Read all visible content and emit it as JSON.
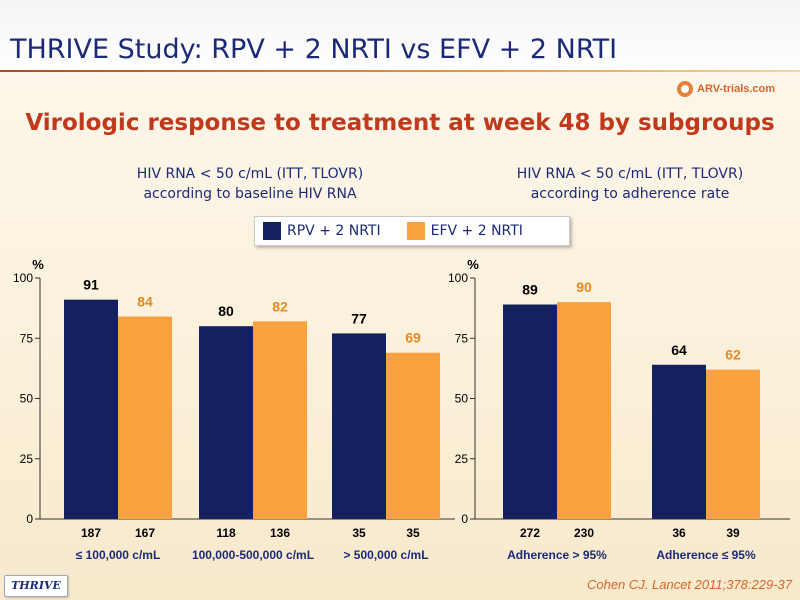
{
  "slide": {
    "title": "THRIVE Study: RPV + 2 NRTI vs EFV + 2 NRTI",
    "logo_text": "ARV-trials.com",
    "subtitle": "Virologic response to treatment at week 48 by subgroups",
    "citation": "Cohen CJ. Lancet 2011;378:229-37",
    "footer_logo": "THRIVE",
    "colors": {
      "rpv": "#13215e",
      "efv": "#f8a13f",
      "title": "#1b2a78",
      "subtitle": "#c0391b",
      "citation": "#d9642a"
    }
  },
  "panels": [
    {
      "title_line1": "HIV RNA < 50 c/mL (ITT, TLOVR)",
      "title_line2": "according to baseline HIV RNA"
    },
    {
      "title_line1": "HIV RNA < 50 c/mL (ITT, TLOVR)",
      "title_line2": "according to adherence rate"
    }
  ],
  "legend": {
    "items": [
      {
        "label": "RPV + 2 NRTI",
        "color": "#13215e"
      },
      {
        "label": "EFV + 2 NRTI",
        "color": "#f8a13f"
      }
    ]
  },
  "chart_data": [
    {
      "type": "bar",
      "ylabel": "%",
      "ylim": [
        0,
        100
      ],
      "yticks": [
        0,
        25,
        50,
        75,
        100
      ],
      "categories": [
        "≤ 100,000 c/mL",
        "100,000-500,000 c/mL",
        "> 500,000 c/mL"
      ],
      "series": [
        {
          "name": "RPV + 2 NRTI",
          "values": [
            91,
            80,
            77
          ],
          "n": [
            "187",
            "118",
            "35"
          ]
        },
        {
          "name": "EFV + 2 NRTI",
          "values": [
            84,
            82,
            69
          ],
          "n": [
            "167",
            "136",
            "35"
          ]
        }
      ]
    },
    {
      "type": "bar",
      "ylabel": "%",
      "ylim": [
        0,
        100
      ],
      "yticks": [
        0,
        25,
        50,
        75,
        100
      ],
      "categories": [
        "Adherence > 95%",
        "Adherence ≤ 95%"
      ],
      "series": [
        {
          "name": "RPV + 2 NRTI",
          "values": [
            89,
            64
          ],
          "n": [
            "272",
            "36"
          ]
        },
        {
          "name": "EFV + 2 NRTI",
          "values": [
            90,
            62
          ],
          "n": [
            "230",
            "39"
          ]
        }
      ]
    }
  ]
}
